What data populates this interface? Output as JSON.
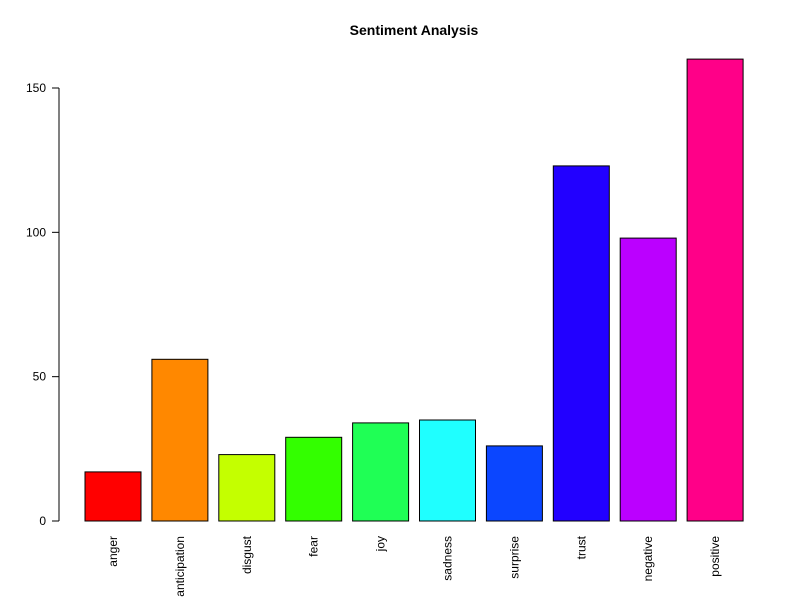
{
  "chart_data": {
    "type": "bar",
    "title": "Sentiment Analysis",
    "xlabel": "",
    "ylabel": "",
    "categories": [
      "anger",
      "anticipation",
      "disgust",
      "fear",
      "joy",
      "sadness",
      "surprise",
      "trust",
      "negative",
      "positive"
    ],
    "values": [
      17,
      56,
      23,
      29,
      34,
      35,
      26,
      123,
      98,
      160
    ],
    "colors": [
      "#FF0000",
      "#FF8800",
      "#C4FF00",
      "#33FF00",
      "#1FFF55",
      "#1FFFFF",
      "#0B46FF",
      "#2200FF",
      "#BB00FF",
      "#FF0088"
    ],
    "ylim": [
      0,
      160
    ],
    "yticks": [
      0,
      50,
      100,
      150
    ],
    "ytick_labels": [
      "0",
      "50",
      "100",
      "150"
    ],
    "grid": false,
    "legend": "none",
    "x_tick_labels_rotated": true
  }
}
